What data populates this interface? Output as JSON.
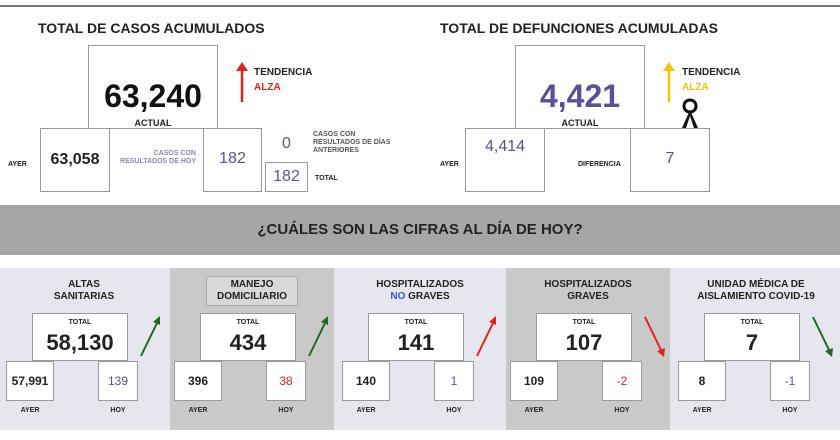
{
  "casos": {
    "title": "TOTAL DE CASOS ACUMULADOS",
    "total": "63,240",
    "total_label": "ACTUAL",
    "trend_label": "TENDENCIA",
    "trend": "ALZA",
    "trend_color": "#e3221b",
    "yesterday_label": "AYER",
    "yesterday": "63,058",
    "today_label": "CASOS CON RESULTADOS DE HOY",
    "today": "182",
    "previous_label": "CASOS CON RESULTADOS DE DÍAS ANTERIORES",
    "previous": "0",
    "sum": "182",
    "sum_label": "TOTAL"
  },
  "defunciones": {
    "title": "TOTAL DE DEFUNCIONES ACUMULADAS",
    "total": "4,421",
    "total_label": "ACTUAL",
    "trend_label": "TENDENCIA",
    "trend": "ALZA",
    "trend_color": "#f5c400",
    "yesterday_label": "AYER",
    "yesterday": "4,414",
    "difference_label": "DIFERENCIA",
    "difference": "7"
  },
  "banner": "¿CUÁLES SON LAS CIFRAS AL DÍA DE HOY?",
  "cards": [
    {
      "title_lines": [
        [
          "ALTAS"
        ],
        [
          "SANITARIAS"
        ]
      ],
      "total_label": "TOTAL",
      "total": "58,130",
      "yesterday": "57,991",
      "today": "139",
      "today_color": "#5a4f9c",
      "yesterday_label": "AYER",
      "today_label": "HOY",
      "trend": "up",
      "trend_color": "#1e6b1e",
      "shaded": false,
      "title_boxed": false
    },
    {
      "title_lines": [
        [
          "MANEJO"
        ],
        [
          "DOMICILIARIO"
        ]
      ],
      "total_label": "TOTAL",
      "total": "434",
      "yesterday": "396",
      "today": "38",
      "today_color": "#e3221b",
      "yesterday_label": "AYER",
      "today_label": "HOY",
      "trend": "up",
      "trend_color": "#1e6b1e",
      "shaded": true,
      "title_boxed": true
    },
    {
      "title_lines": [
        [
          "HOSPITALIZADOS"
        ],
        [
          {
            "text": "NO",
            "color": "#3a56d4"
          },
          " GRAVES"
        ]
      ],
      "total_label": "TOTAL",
      "total": "141",
      "yesterday": "140",
      "today": "1",
      "today_color": "#5a4f9c",
      "yesterday_label": "AYER",
      "today_label": "HOY",
      "trend": "up",
      "trend_color": "#e3221b",
      "shaded": false,
      "title_boxed": false
    },
    {
      "title_lines": [
        [
          "HOSPITALIZADOS"
        ],
        [
          "GRAVES"
        ]
      ],
      "total_label": "TOTAL",
      "total": "107",
      "yesterday": "109",
      "today": "-2",
      "today_color": "#e3221b",
      "yesterday_label": "AYER",
      "today_label": "HOY",
      "trend": "down",
      "trend_color": "#e3221b",
      "shaded": true,
      "title_boxed": false
    },
    {
      "title_lines": [
        [
          "UNIDAD MÉDICA DE"
        ],
        [
          "AISLAMIENTO COVID-19"
        ]
      ],
      "total_label": "TOTAL",
      "total": "7",
      "yesterday": "8",
      "today": "-1",
      "today_color": "#5a4f9c",
      "yesterday_label": "AYER",
      "today_label": "HOY",
      "trend": "down",
      "trend_color": "#1e6b1e",
      "shaded": false,
      "title_boxed": false
    }
  ]
}
